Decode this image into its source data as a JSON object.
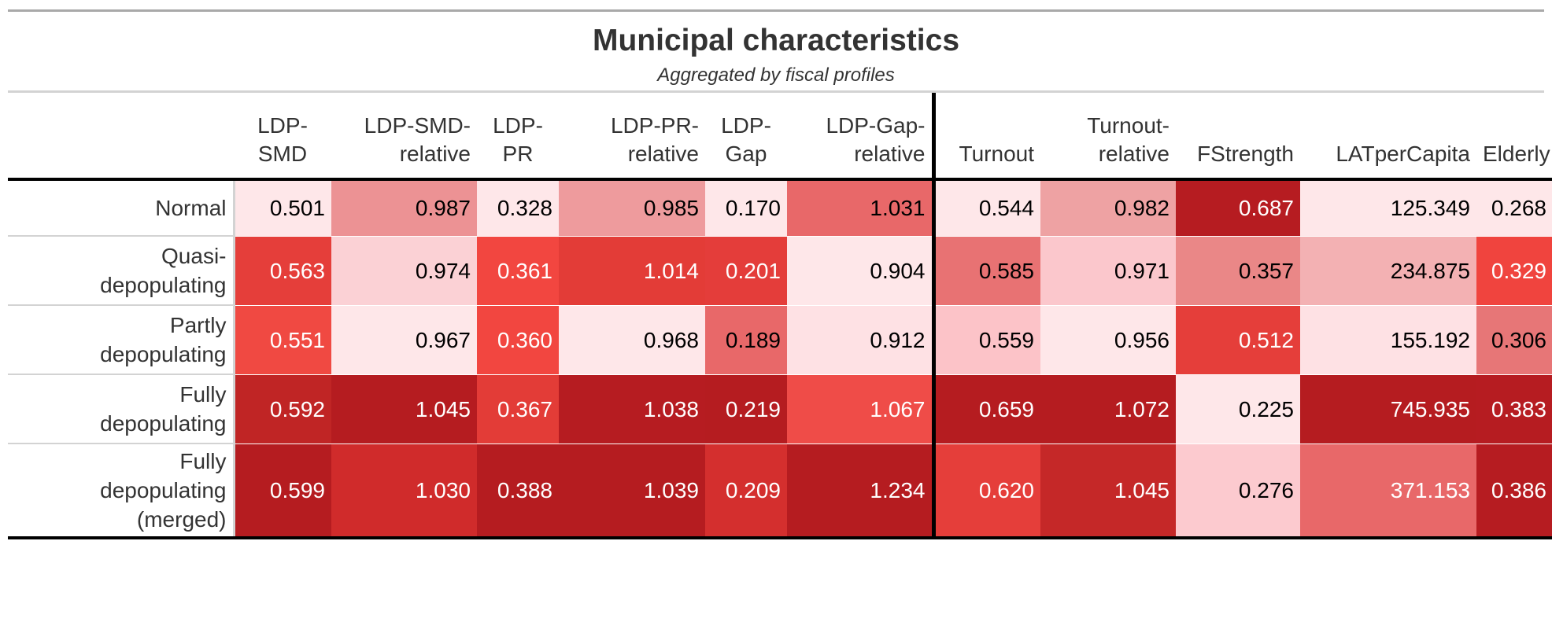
{
  "title": "Municipal characteristics",
  "subtitle": "Aggregated by fiscal profiles",
  "columns": [
    {
      "l1": "LDP-",
      "l2": "SMD"
    },
    {
      "l1": "LDP-SMD-",
      "l2": "relative"
    },
    {
      "l1": "LDP-",
      "l2": "PR"
    },
    {
      "l1": "LDP-PR-",
      "l2": "relative"
    },
    {
      "l1": "LDP-",
      "l2": "Gap"
    },
    {
      "l1": "LDP-Gap-",
      "l2": "relative"
    },
    {
      "l1": "",
      "l2": "Turnout"
    },
    {
      "l1": "Turnout-",
      "l2": "relative"
    },
    {
      "l1": "",
      "l2": "FStrength"
    },
    {
      "l1": "",
      "l2": "LATperCapita"
    },
    {
      "l1": "",
      "l2": "Elderly"
    }
  ],
  "rows": [
    {
      "label": [
        "Normal"
      ],
      "cells": [
        {
          "v": "0.501",
          "bg": "#fee7e9",
          "t": "lt"
        },
        {
          "v": "0.987",
          "bg": "#ec9294",
          "t": "lt"
        },
        {
          "v": "0.328",
          "bg": "#fee7e9",
          "t": "lt"
        },
        {
          "v": "0.985",
          "bg": "#ee9b9d",
          "t": "lt"
        },
        {
          "v": "0.170",
          "bg": "#fee7e9",
          "t": "lt"
        },
        {
          "v": "1.031",
          "bg": "#e86869",
          "t": "lt"
        },
        {
          "v": "0.544",
          "bg": "#fee7e9",
          "t": "lt"
        },
        {
          "v": "0.982",
          "bg": "#eea2a3",
          "t": "lt"
        },
        {
          "v": "0.687",
          "bg": "#b61c21",
          "t": "dk"
        },
        {
          "v": "125.349",
          "bg": "#fee7e9",
          "t": "lt"
        },
        {
          "v": "0.268",
          "bg": "#fee7e9",
          "t": "lt"
        }
      ]
    },
    {
      "label": [
        "Quasi-",
        "depopulating"
      ],
      "cells": [
        {
          "v": "0.563",
          "bg": "#e53e3a",
          "t": "dk"
        },
        {
          "v": "0.974",
          "bg": "#fbd1d5",
          "t": "lt"
        },
        {
          "v": "0.361",
          "bg": "#f24640",
          "t": "dk"
        },
        {
          "v": "1.014",
          "bg": "#e33c37",
          "t": "dk"
        },
        {
          "v": "0.201",
          "bg": "#e43d3a",
          "t": "dk"
        },
        {
          "v": "0.904",
          "bg": "#fee7e9",
          "t": "lt"
        },
        {
          "v": "0.585",
          "bg": "#e87273",
          "t": "lt"
        },
        {
          "v": "0.971",
          "bg": "#fbc7cc",
          "t": "lt"
        },
        {
          "v": "0.357",
          "bg": "#ea8787",
          "t": "lt"
        },
        {
          "v": "234.875",
          "bg": "#f3b1b3",
          "t": "lt"
        },
        {
          "v": "0.329",
          "bg": "#f0443e",
          "t": "dk"
        }
      ]
    },
    {
      "label": [
        "Partly",
        "depopulating"
      ],
      "cells": [
        {
          "v": "0.551",
          "bg": "#f04942",
          "t": "dk"
        },
        {
          "v": "0.967",
          "bg": "#fee7e9",
          "t": "lt"
        },
        {
          "v": "0.360",
          "bg": "#f24640",
          "t": "dk"
        },
        {
          "v": "0.968",
          "bg": "#fee7e9",
          "t": "lt"
        },
        {
          "v": "0.189",
          "bg": "#e86869",
          "t": "lt"
        },
        {
          "v": "0.912",
          "bg": "#fee1e4",
          "t": "lt"
        },
        {
          "v": "0.559",
          "bg": "#fcc3c8",
          "t": "lt"
        },
        {
          "v": "0.956",
          "bg": "#fee7e9",
          "t": "lt"
        },
        {
          "v": "0.512",
          "bg": "#e53e3a",
          "t": "dk"
        },
        {
          "v": "155.192",
          "bg": "#fee1e4",
          "t": "lt"
        },
        {
          "v": "0.306",
          "bg": "#e77677",
          "t": "lt"
        }
      ]
    },
    {
      "label": [
        "Fully",
        "depopulating"
      ],
      "cells": [
        {
          "v": "0.592",
          "bg": "#c02525",
          "t": "dk"
        },
        {
          "v": "1.045",
          "bg": "#b51c20",
          "t": "dk"
        },
        {
          "v": "0.367",
          "bg": "#e33c37",
          "t": "dk"
        },
        {
          "v": "1.038",
          "bg": "#b61c21",
          "t": "dk"
        },
        {
          "v": "0.219",
          "bg": "#b51c20",
          "t": "dk"
        },
        {
          "v": "1.067",
          "bg": "#ef4c48",
          "t": "dk"
        },
        {
          "v": "0.659",
          "bg": "#b51c20",
          "t": "dk"
        },
        {
          "v": "1.072",
          "bg": "#b51c20",
          "t": "dk"
        },
        {
          "v": "0.225",
          "bg": "#fee7e9",
          "t": "lt"
        },
        {
          "v": "745.935",
          "bg": "#b51c20",
          "t": "dk"
        },
        {
          "v": "0.383",
          "bg": "#b61c21",
          "t": "dk"
        }
      ]
    },
    {
      "label": [
        "Fully",
        "depopulating",
        "(merged)"
      ],
      "cells": [
        {
          "v": "0.599",
          "bg": "#b51c20",
          "t": "dk"
        },
        {
          "v": "1.030",
          "bg": "#d02b2b",
          "t": "dk"
        },
        {
          "v": "0.388",
          "bg": "#b51c20",
          "t": "dk"
        },
        {
          "v": "1.039",
          "bg": "#b51c20",
          "t": "dk"
        },
        {
          "v": "0.209",
          "bg": "#d42f2e",
          "t": "dk"
        },
        {
          "v": "1.234",
          "bg": "#b51c20",
          "t": "dk"
        },
        {
          "v": "0.620",
          "bg": "#e53e3a",
          "t": "dk"
        },
        {
          "v": "1.045",
          "bg": "#c52828",
          "t": "dk"
        },
        {
          "v": "0.276",
          "bg": "#fccacf",
          "t": "lt"
        },
        {
          "v": "371.153",
          "bg": "#e86869",
          "t": "dk"
        },
        {
          "v": "0.386",
          "bg": "#b61c21",
          "t": "dk"
        }
      ]
    }
  ]
}
